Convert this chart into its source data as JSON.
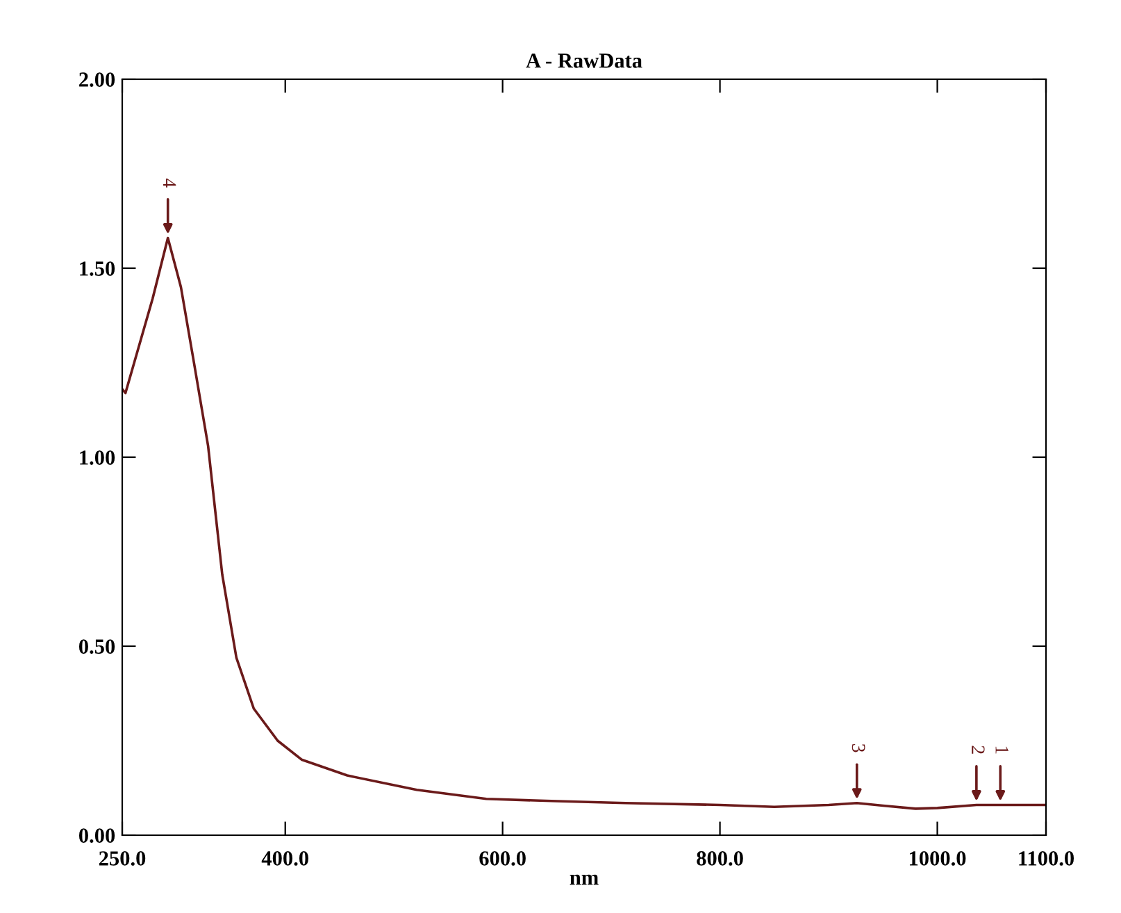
{
  "chart_data": {
    "type": "line",
    "title": "A - RawData",
    "xlabel": "nm",
    "x": [
      250,
      253,
      265,
      278,
      292,
      304,
      316,
      329,
      342,
      355,
      371,
      393,
      415,
      457,
      521,
      585,
      650,
      713,
      800,
      850,
      900,
      926,
      950,
      980,
      1000,
      1036,
      1058,
      1100
    ],
    "series": [
      {
        "color": "#6b1a1a",
        "values": [
          1.18,
          1.17,
          1.29,
          1.42,
          1.58,
          1.45,
          1.25,
          1.03,
          0.69,
          0.47,
          0.335,
          0.25,
          0.2,
          0.158,
          0.12,
          0.096,
          0.09,
          0.085,
          0.08,
          0.075,
          0.08,
          0.085,
          0.078,
          0.07,
          0.072,
          0.08,
          0.08,
          0.08
        ]
      }
    ],
    "xlim": [
      250,
      1100
    ],
    "ylim": [
      0,
      2
    ],
    "xticks": [
      {
        "value": 250,
        "label": "250.0"
      },
      {
        "value": 400,
        "label": "400.0"
      },
      {
        "value": 600,
        "label": "600.0"
      },
      {
        "value": 800,
        "label": "800.0"
      },
      {
        "value": 1000,
        "label": "1000.0"
      },
      {
        "value": 1100,
        "label": "1100.0"
      }
    ],
    "yticks": [
      {
        "value": 0,
        "label": "0.00"
      },
      {
        "value": 0.5,
        "label": "0.50"
      },
      {
        "value": 1,
        "label": "1.00"
      },
      {
        "value": 1.5,
        "label": "1.50"
      },
      {
        "value": 2,
        "label": "2.00"
      }
    ],
    "annotations": [
      {
        "text": "4",
        "x": 292,
        "y": 1.58
      },
      {
        "text": "3",
        "x": 926,
        "y": 0.085
      },
      {
        "text": "2",
        "x": 1036,
        "y": 0.08
      },
      {
        "text": "1",
        "x": 1058,
        "y": 0.08
      }
    ],
    "grid": false,
    "legend": false,
    "marker": "none",
    "line_style": "solid"
  }
}
